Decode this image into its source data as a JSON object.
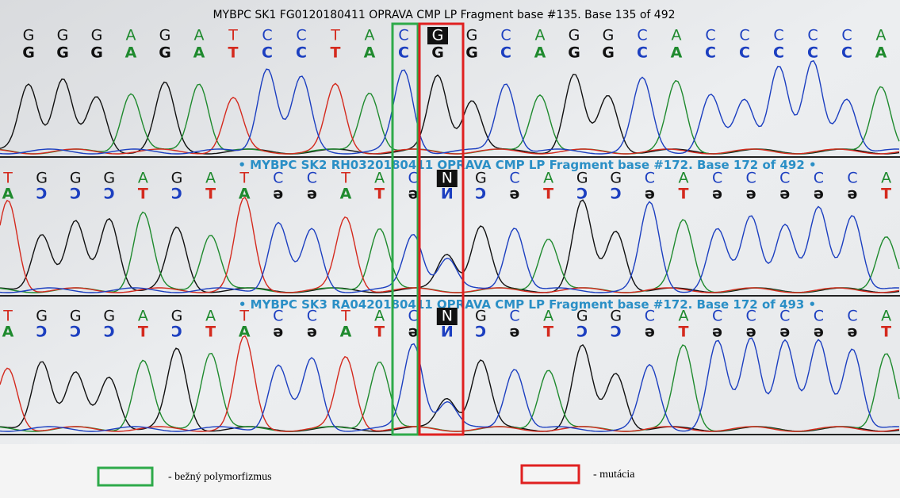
{
  "tracks": [
    {
      "title": "MYBPC SK1 FG0120180411 OPRAVA CMP LP Fragment base #135. Base 135 of 492",
      "bases": [
        "G",
        "G",
        "G",
        "A",
        "G",
        "A",
        "T",
        "C",
        "C",
        "T",
        "A",
        "C",
        "G",
        "G",
        "C",
        "A",
        "G",
        "G",
        "C",
        "A",
        "C",
        "C",
        "C",
        "C",
        "C",
        "A"
      ],
      "calls": [
        "G",
        "G",
        "G",
        "A",
        "G",
        "A",
        "T",
        "C",
        "C",
        "T",
        "A",
        "C",
        "G",
        "G",
        "C",
        "A",
        "G",
        "G",
        "C",
        "A",
        "C",
        "C",
        "C",
        "C",
        "C",
        "A"
      ]
    },
    {
      "title": "• MYBPC SK2 RH0320180411 OPRAVA CMP LP Fragment base #172. Base 172 of 492 •",
      "bases": [
        "T",
        "G",
        "G",
        "G",
        "A",
        "G",
        "A",
        "T",
        "C",
        "C",
        "T",
        "A",
        "C",
        "N",
        "G",
        "C",
        "A",
        "G",
        "G",
        "C",
        "A",
        "C",
        "C",
        "C",
        "C",
        "C",
        "A"
      ],
      "calls": [
        "A",
        "Ɔ",
        "Ɔ",
        "Ɔ",
        "T",
        "Ɔ",
        "T",
        "A",
        "ə",
        "ə",
        "A",
        "T",
        "ə",
        "И",
        "Ɔ",
        "ə",
        "T",
        "Ɔ",
        "Ɔ",
        "ə",
        "T",
        "ə",
        "ə",
        "ə",
        "ə",
        "ə",
        "T"
      ]
    },
    {
      "title": "• MYBPC SK3 RA0420180411 OPRAVA CMP LP Fragment base #172. Base 172 of 493 •",
      "bases": [
        "T",
        "G",
        "G",
        "G",
        "A",
        "G",
        "A",
        "T",
        "C",
        "C",
        "T",
        "A",
        "C",
        "N",
        "G",
        "C",
        "A",
        "G",
        "G",
        "C",
        "A",
        "C",
        "C",
        "C",
        "C",
        "C",
        "A"
      ],
      "calls": [
        "A",
        "Ɔ",
        "Ɔ",
        "Ɔ",
        "T",
        "Ɔ",
        "T",
        "A",
        "ə",
        "ə",
        "A",
        "T",
        "ə",
        "И",
        "Ɔ",
        "ə",
        "T",
        "Ɔ",
        "Ɔ",
        "ə",
        "T",
        "ə",
        "ə",
        "ə",
        "ə",
        "ə",
        "T"
      ]
    }
  ],
  "legend": {
    "polymorphism": "- bežný polymorfizmus",
    "mutation": "- mutácia"
  }
}
